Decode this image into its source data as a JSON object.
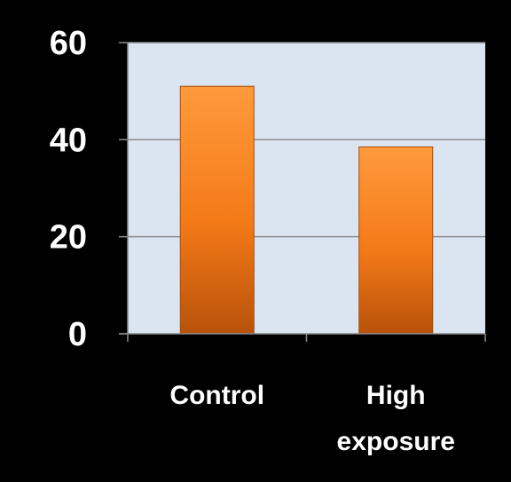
{
  "chart_data": {
    "type": "bar",
    "categories": [
      "Control",
      "High exposure"
    ],
    "category_label_lines": [
      [
        "Control"
      ],
      [
        "High",
        "exposure"
      ]
    ],
    "values": [
      51,
      38.5
    ],
    "ylim": [
      0,
      60
    ],
    "y_ticks": [
      0,
      20,
      40,
      60
    ],
    "y_tick_labels": [
      "0",
      "20",
      "40",
      "60"
    ],
    "grid": true,
    "legend": "none",
    "colors": {
      "background": "#000000",
      "plot_area": "#dbe5f1",
      "bar_light": "#ff9a3c",
      "bar_mid": "#f47a18",
      "bar_dark": "#b8520a",
      "gridline": "#8c8c8c",
      "axis": "#8c8c8c",
      "text": "#ffffff"
    }
  }
}
